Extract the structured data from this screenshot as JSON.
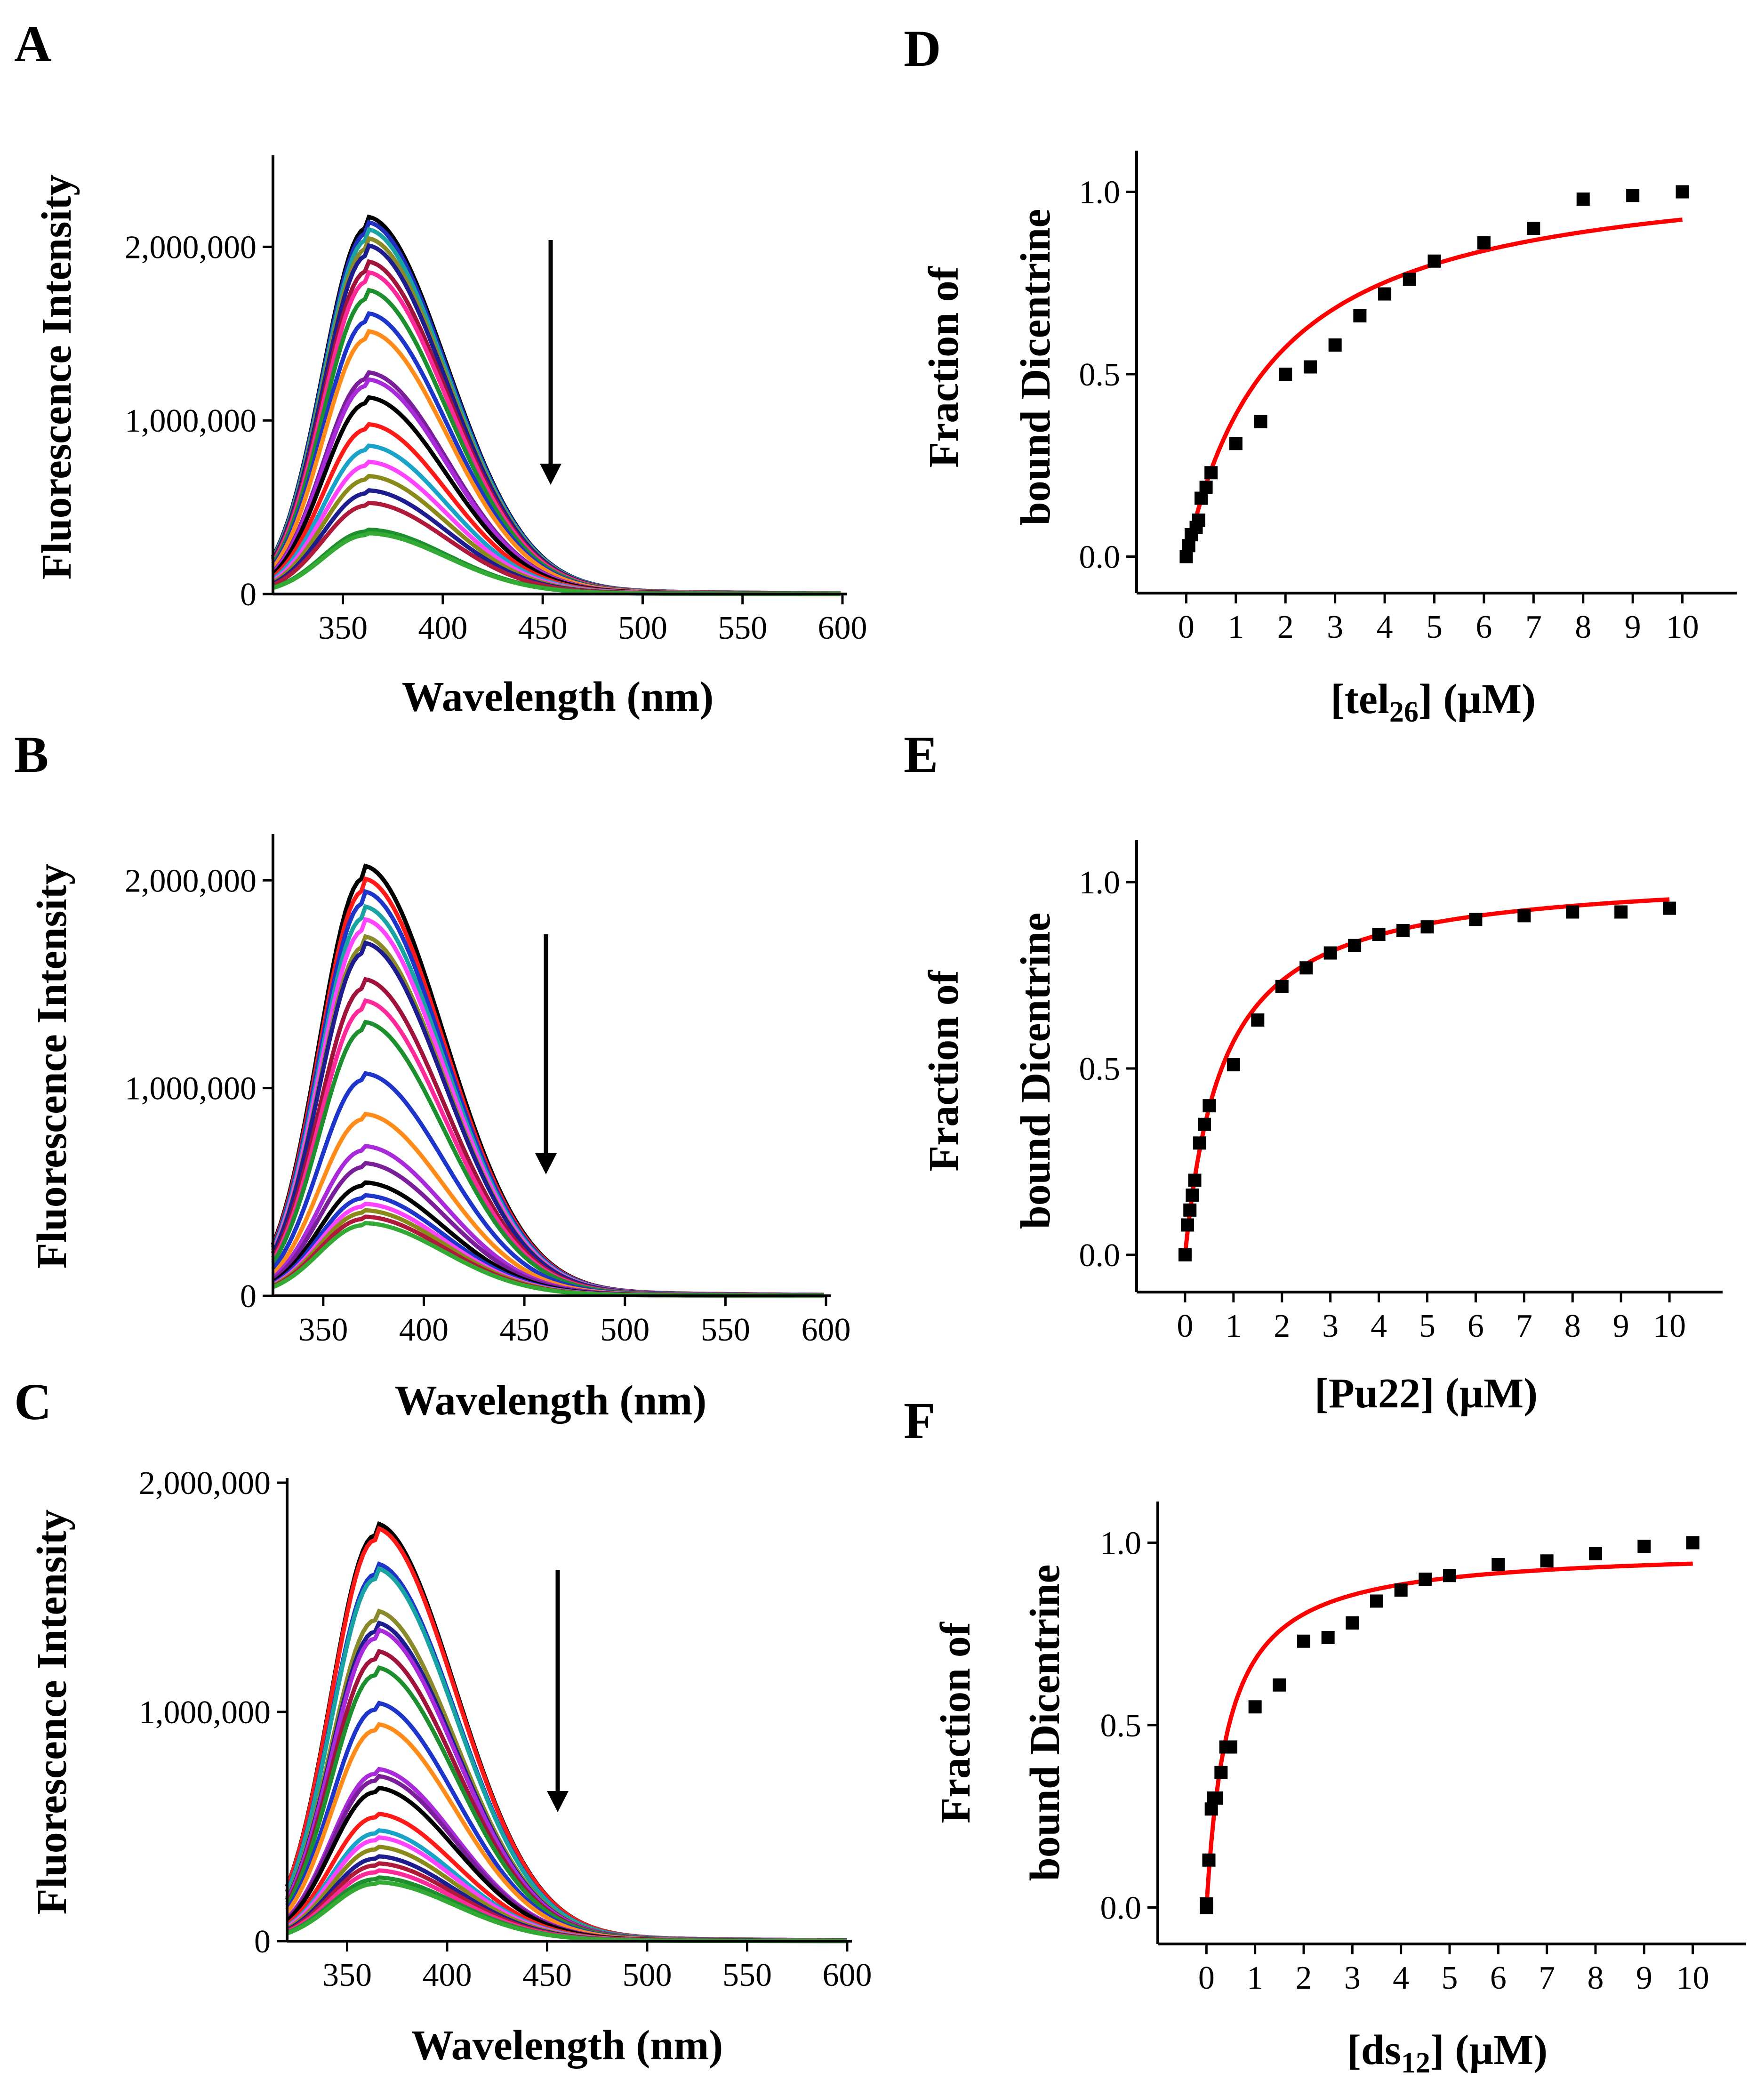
{
  "figure": {
    "panels": [
      "A",
      "B",
      "C",
      "D",
      "E",
      "F"
    ]
  },
  "chart_data": [
    {
      "panel": "A",
      "type": "line",
      "xlabel": "Wavelength (nm)",
      "ylabel": "Fluorescence Intensity",
      "xlim": [
        315,
        600
      ],
      "ylim": [
        0,
        2500000
      ],
      "xticks": [
        350,
        400,
        450,
        500,
        550,
        600
      ],
      "yticks": [
        0,
        1000000,
        2000000
      ],
      "ytick_labels": [
        "0",
        "1,000,000",
        "2,000,000"
      ],
      "annotation": "downward arrow: fluorescence decreases with titration",
      "peak_wavelength": 362,
      "series_peaks": [
        2110000,
        2080000,
        2040000,
        1990000,
        1950000,
        1860000,
        1800000,
        1700000,
        1570000,
        1470000,
        1240000,
        1200000,
        1100000,
        950000,
        830000,
        740000,
        660000,
        580000,
        510000,
        360000,
        340000
      ],
      "series_colors": [
        "#000000",
        "#1f2fbf",
        "#1aa3a3",
        "#8a8a2a",
        "#1d1d8f",
        "#a0143c",
        "#ff2a9a",
        "#1e8f2e",
        "#1d35c8",
        "#ff8c1a",
        "#7a1e9a",
        "#a82ad8",
        "#000000",
        "#ff1a1a",
        "#1aa3c8",
        "#ff44ff",
        "#8a8a1a",
        "#1d1d8f",
        "#b01a3a",
        "#1e8f2e",
        "#33aa33"
      ]
    },
    {
      "panel": "B",
      "type": "line",
      "xlabel": "Wavelength (nm)",
      "ylabel": "Fluorescence Intensity",
      "xlim": [
        325,
        600
      ],
      "ylim": [
        0,
        2200000
      ],
      "xticks": [
        350,
        400,
        450,
        500,
        550,
        600
      ],
      "yticks": [
        0,
        1000000,
        2000000
      ],
      "ytick_labels": [
        "0",
        "1,000,000",
        "2,000,000"
      ],
      "annotation": "downward arrow: fluorescence decreases with titration",
      "peak_wavelength": 370,
      "series_peaks": [
        2010000,
        1950000,
        1890000,
        1820000,
        1760000,
        1680000,
        1650000,
        1480000,
        1380000,
        1280000,
        1040000,
        850000,
        700000,
        620000,
        530000,
        470000,
        430000,
        400000,
        370000,
        340000
      ],
      "series_colors": [
        "#000000",
        "#ff1a1a",
        "#1d35c8",
        "#1aa3a3",
        "#ff44ff",
        "#8a8a2a",
        "#1d1d8f",
        "#a0143c",
        "#ff2a9a",
        "#1e8f2e",
        "#1d35c8",
        "#ff8c1a",
        "#a82ad8",
        "#7a1e9a",
        "#000000",
        "#1d35c8",
        "#ff44ff",
        "#8a8a1a",
        "#b01a3a",
        "#33aa33"
      ]
    },
    {
      "panel": "C",
      "type": "line",
      "xlabel": "Wavelength (nm)",
      "ylabel": "Fluorescence Intensity",
      "xlim": [
        320,
        600
      ],
      "ylim": [
        0,
        2000000
      ],
      "xticks": [
        350,
        400,
        450,
        500,
        550,
        600
      ],
      "yticks": [
        0,
        1000000,
        2000000
      ],
      "ytick_labels": [
        "0",
        "1,000,000",
        "2,000,000"
      ],
      "annotation": "downward arrow: fluorescence decreases with titration",
      "peak_wavelength": 364,
      "series_peaks": [
        1770000,
        1750000,
        1600000,
        1580000,
        1400000,
        1350000,
        1320000,
        1230000,
        1160000,
        1010000,
        920000,
        730000,
        700000,
        650000,
        540000,
        470000,
        440000,
        400000,
        360000,
        330000,
        300000,
        270000,
        250000
      ],
      "series_colors": [
        "#000000",
        "#ff1a1a",
        "#1d35c8",
        "#1aa3a3",
        "#8a8a2a",
        "#1d1d8f",
        "#a82ad8",
        "#a0143c",
        "#1e8f2e",
        "#1d35c8",
        "#ff8c1a",
        "#a82ad8",
        "#7a1e9a",
        "#000000",
        "#ff1a1a",
        "#1aa3c8",
        "#ff44ff",
        "#8a8a1a",
        "#1d1d8f",
        "#b01a3a",
        "#ff2a9a",
        "#1e8f2e",
        "#33aa33"
      ]
    },
    {
      "panel": "D",
      "type": "scatter",
      "xlabel_main": "[tel",
      "xlabel_sub": "26",
      "xlabel_tail": "] (µM)",
      "ylabel_line1": "Fraction of",
      "ylabel_line2": "bound Dicentrine",
      "xlim": [
        -1,
        11
      ],
      "ylim": [
        -0.1,
        1.1
      ],
      "xticks": [
        0,
        1,
        2,
        3,
        4,
        5,
        6,
        7,
        8,
        9,
        10
      ],
      "yticks": [
        0.0,
        0.5,
        1.0
      ],
      "ytick_labels": [
        "0.0",
        "0.5",
        "1.0"
      ],
      "points": [
        [
          0,
          0.0
        ],
        [
          0.05,
          0.03
        ],
        [
          0.1,
          0.06
        ],
        [
          0.2,
          0.08
        ],
        [
          0.25,
          0.1
        ],
        [
          0.3,
          0.16
        ],
        [
          0.4,
          0.19
        ],
        [
          0.5,
          0.23
        ],
        [
          1,
          0.31
        ],
        [
          1.5,
          0.37
        ],
        [
          2,
          0.5
        ],
        [
          2.5,
          0.52
        ],
        [
          3,
          0.58
        ],
        [
          3.5,
          0.66
        ],
        [
          4,
          0.72
        ],
        [
          4.5,
          0.76
        ],
        [
          5,
          0.81
        ],
        [
          6,
          0.86
        ],
        [
          7,
          0.9
        ],
        [
          8,
          0.98
        ],
        [
          9,
          0.99
        ],
        [
          10,
          1.0
        ]
      ],
      "fit": {
        "model": "one-site binding y = Bmax*x/(Kd+x)",
        "Bmax": 1.09,
        "Kd": 1.8,
        "color": "#ff0000"
      }
    },
    {
      "panel": "E",
      "type": "scatter",
      "xlabel_main": "[Pu22] (µM)",
      "ylabel_line1": "Fraction of",
      "ylabel_line2": "bound  Dicentrine",
      "xlim": [
        -1,
        11
      ],
      "ylim": [
        -0.1,
        1.1
      ],
      "xticks": [
        0,
        1,
        2,
        3,
        4,
        5,
        6,
        7,
        8,
        9,
        10
      ],
      "yticks": [
        0.0,
        0.5,
        1.0
      ],
      "ytick_labels": [
        "0.0",
        "0.5",
        "1.0"
      ],
      "points": [
        [
          0,
          0.0
        ],
        [
          0.05,
          0.08
        ],
        [
          0.1,
          0.12
        ],
        [
          0.15,
          0.16
        ],
        [
          0.2,
          0.2
        ],
        [
          0.3,
          0.3
        ],
        [
          0.4,
          0.35
        ],
        [
          0.5,
          0.4
        ],
        [
          1,
          0.51
        ],
        [
          1.5,
          0.63
        ],
        [
          2,
          0.72
        ],
        [
          2.5,
          0.77
        ],
        [
          3,
          0.81
        ],
        [
          3.5,
          0.83
        ],
        [
          4,
          0.86
        ],
        [
          4.5,
          0.87
        ],
        [
          5,
          0.88
        ],
        [
          6,
          0.9
        ],
        [
          7,
          0.91
        ],
        [
          8,
          0.92
        ],
        [
          9,
          0.92
        ],
        [
          10,
          0.93
        ]
      ],
      "fit": {
        "model": "one-site binding y = Bmax*x/(Kd+x)",
        "Bmax": 1.03,
        "Kd": 0.8,
        "color": "#ff0000"
      }
    },
    {
      "panel": "F",
      "type": "scatter",
      "xlabel_main": "[ds",
      "xlabel_sub": "12",
      "xlabel_tail": "] (µM)",
      "ylabel_line1": "Fraction of",
      "ylabel_line2": "bound Dicentrine",
      "xlim": [
        -1,
        11
      ],
      "ylim": [
        -0.1,
        1.1
      ],
      "xticks": [
        0,
        1,
        2,
        3,
        4,
        5,
        6,
        7,
        8,
        9,
        10
      ],
      "yticks": [
        0.0,
        0.5,
        1.0
      ],
      "ytick_labels": [
        "0.0",
        "0.5",
        "1.0"
      ],
      "points": [
        [
          0,
          0.0
        ],
        [
          0.0,
          0.01
        ],
        [
          0.05,
          0.13
        ],
        [
          0.1,
          0.27
        ],
        [
          0.15,
          0.3
        ],
        [
          0.2,
          0.3
        ],
        [
          0.3,
          0.37
        ],
        [
          0.4,
          0.44
        ],
        [
          0.5,
          0.44
        ],
        [
          1,
          0.55
        ],
        [
          1.5,
          0.61
        ],
        [
          2,
          0.73
        ],
        [
          2.5,
          0.74
        ],
        [
          3,
          0.78
        ],
        [
          3.5,
          0.84
        ],
        [
          4,
          0.87
        ],
        [
          4.5,
          0.9
        ],
        [
          5,
          0.91
        ],
        [
          6,
          0.94
        ],
        [
          7,
          0.95
        ],
        [
          8,
          0.97
        ],
        [
          9,
          0.99
        ],
        [
          10,
          1.0
        ]
      ],
      "fit": {
        "model": "one-site binding y = Bmax*x/(Kd+x)",
        "Bmax": 0.985,
        "Kd": 0.45,
        "color": "#ff0000"
      }
    }
  ]
}
